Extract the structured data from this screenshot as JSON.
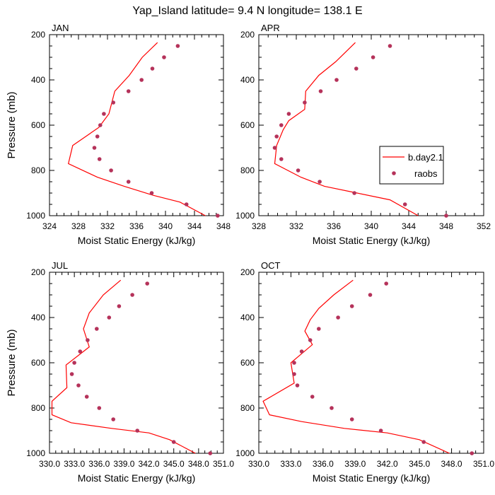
{
  "page": {
    "title": "Yap_Island  latitude= 9.4 N longitude= 138.1 E"
  },
  "legend": {
    "model_label": "b.day2.1",
    "obs_label": "raobs"
  },
  "colors": {
    "model_line": "#ff0000",
    "obs_marker": "#b5325a",
    "axes": "#000000",
    "background": "#ffffff"
  },
  "chart_data": [
    {
      "type": "scatter",
      "panel": "JAN",
      "title": "JAN",
      "xlabel": "Moist Static Energy (kJ/kg)",
      "ylabel": "Pressure (mb)",
      "xlim": [
        324,
        348
      ],
      "ylim": [
        1000,
        200
      ],
      "y_reversed": true,
      "xticks": [
        "324",
        "328",
        "332",
        "336",
        "340",
        "344",
        "348"
      ],
      "yticks": [
        "200",
        "400",
        "600",
        "800",
        "1000"
      ],
      "series": [
        {
          "name": "b.day2.1",
          "kind": "line",
          "points": [
            [
              338.9,
              235
            ],
            [
              336.8,
              300
            ],
            [
              335.0,
              380
            ],
            [
              333.0,
              450
            ],
            [
              332.2,
              550
            ],
            [
              330.8,
              610
            ],
            [
              329.0,
              650
            ],
            [
              327.2,
              690
            ],
            [
              326.6,
              770
            ],
            [
              330.6,
              830
            ],
            [
              334.3,
              870
            ],
            [
              338.3,
              910
            ],
            [
              342.0,
              940
            ],
            [
              345.5,
              1000
            ]
          ]
        },
        {
          "name": "raobs",
          "kind": "scatter",
          "points": [
            [
              341.7,
              250
            ],
            [
              339.8,
              300
            ],
            [
              338.2,
              350
            ],
            [
              336.7,
              400
            ],
            [
              334.9,
              450
            ],
            [
              332.8,
              500
            ],
            [
              331.5,
              550
            ],
            [
              331.0,
              600
            ],
            [
              330.6,
              650
            ],
            [
              330.2,
              700
            ],
            [
              330.9,
              750
            ],
            [
              332.5,
              800
            ],
            [
              334.9,
              850
            ],
            [
              338.1,
              900
            ],
            [
              342.9,
              950
            ],
            [
              347.2,
              1000
            ]
          ]
        }
      ]
    },
    {
      "type": "scatter",
      "panel": "APR",
      "title": "APR",
      "xlabel": "Moist Static Energy (kJ/kg)",
      "ylabel": "",
      "xlim": [
        328,
        352
      ],
      "ylim": [
        1000,
        200
      ],
      "y_reversed": true,
      "xticks": [
        "328",
        "332",
        "336",
        "340",
        "344",
        "348",
        "352"
      ],
      "yticks": [
        "200",
        "400",
        "600",
        "800",
        "1000"
      ],
      "series": [
        {
          "name": "b.day2.1",
          "kind": "line",
          "points": [
            [
              338.3,
              235
            ],
            [
              336.2,
              320
            ],
            [
              334.4,
              380
            ],
            [
              333.0,
              450
            ],
            [
              332.9,
              530
            ],
            [
              331.2,
              580
            ],
            [
              330.6,
              620
            ],
            [
              329.9,
              690
            ],
            [
              329.7,
              770
            ],
            [
              332.5,
              830
            ],
            [
              335.0,
              870
            ],
            [
              338.5,
              900
            ],
            [
              342.0,
              930
            ],
            [
              345.0,
              1000
            ]
          ]
        },
        {
          "name": "raobs",
          "kind": "scatter",
          "points": [
            [
              342.0,
              250
            ],
            [
              340.2,
              300
            ],
            [
              338.4,
              350
            ],
            [
              336.3,
              400
            ],
            [
              334.6,
              450
            ],
            [
              332.9,
              500
            ],
            [
              331.2,
              550
            ],
            [
              330.4,
              600
            ],
            [
              329.9,
              650
            ],
            [
              329.7,
              700
            ],
            [
              330.4,
              750
            ],
            [
              332.2,
              800
            ],
            [
              334.5,
              850
            ],
            [
              338.2,
              900
            ],
            [
              343.6,
              950
            ],
            [
              348.0,
              1000
            ]
          ]
        }
      ]
    },
    {
      "type": "scatter",
      "panel": "JUL",
      "title": "JUL",
      "xlabel": "Moist Static Energy (kJ/kg)",
      "ylabel": "Pressure (mb)",
      "xlim": [
        330,
        351
      ],
      "ylim": [
        1000,
        200
      ],
      "y_reversed": true,
      "xticks": [
        "330.0",
        "333.0",
        "336.0",
        "339.0",
        "342.0",
        "345.0",
        "348.0",
        "351.0"
      ],
      "yticks": [
        "200",
        "400",
        "600",
        "800",
        "1000"
      ],
      "series": [
        {
          "name": "b.day2.1",
          "kind": "line",
          "points": [
            [
              338.6,
              235
            ],
            [
              336.5,
              300
            ],
            [
              334.8,
              380
            ],
            [
              334.1,
              450
            ],
            [
              334.8,
              530
            ],
            [
              332.0,
              610
            ],
            [
              332.1,
              710
            ],
            [
              330.3,
              770
            ],
            [
              330.3,
              830
            ],
            [
              332.6,
              865
            ],
            [
              337.5,
              890
            ],
            [
              342.0,
              910
            ],
            [
              344.5,
              940
            ],
            [
              347.6,
              1000
            ]
          ]
        },
        {
          "name": "raobs",
          "kind": "scatter",
          "points": [
            [
              341.8,
              250
            ],
            [
              340.0,
              300
            ],
            [
              338.4,
              350
            ],
            [
              337.2,
              400
            ],
            [
              335.7,
              450
            ],
            [
              334.6,
              500
            ],
            [
              333.7,
              550
            ],
            [
              333.0,
              600
            ],
            [
              332.7,
              650
            ],
            [
              333.5,
              700
            ],
            [
              334.5,
              750
            ],
            [
              336.0,
              800
            ],
            [
              337.7,
              850
            ],
            [
              340.6,
              900
            ],
            [
              345.0,
              950
            ],
            [
              349.4,
              1000
            ]
          ]
        }
      ]
    },
    {
      "type": "scatter",
      "panel": "OCT",
      "title": "OCT",
      "xlabel": "Moist Static Energy (kJ/kg)",
      "ylabel": "",
      "xlim": [
        330,
        351
      ],
      "ylim": [
        1000,
        200
      ],
      "y_reversed": true,
      "xticks": [
        "330.0",
        "333.0",
        "336.0",
        "339.0",
        "342.0",
        "345.0",
        "348.0",
        "351.0"
      ],
      "yticks": [
        "200",
        "400",
        "600",
        "800",
        "1000"
      ],
      "series": [
        {
          "name": "b.day2.1",
          "kind": "line",
          "points": [
            [
              338.8,
              235
            ],
            [
              337.0,
              300
            ],
            [
              335.6,
              360
            ],
            [
              334.8,
              410
            ],
            [
              334.3,
              460
            ],
            [
              335.0,
              520
            ],
            [
              333.0,
              600
            ],
            [
              333.3,
              690
            ],
            [
              330.4,
              770
            ],
            [
              331.0,
              830
            ],
            [
              334.0,
              860
            ],
            [
              338.0,
              890
            ],
            [
              342.0,
              910
            ],
            [
              345.0,
              940
            ],
            [
              347.8,
              1000
            ]
          ]
        },
        {
          "name": "raobs",
          "kind": "scatter",
          "points": [
            [
              341.9,
              250
            ],
            [
              340.4,
              300
            ],
            [
              338.7,
              350
            ],
            [
              337.4,
              400
            ],
            [
              335.6,
              450
            ],
            [
              334.8,
              500
            ],
            [
              334.0,
              550
            ],
            [
              333.3,
              600
            ],
            [
              333.3,
              650
            ],
            [
              333.6,
              700
            ],
            [
              335.0,
              750
            ],
            [
              336.8,
              800
            ],
            [
              338.7,
              850
            ],
            [
              341.4,
              900
            ],
            [
              345.4,
              950
            ],
            [
              349.9,
              1000
            ]
          ]
        }
      ]
    }
  ]
}
